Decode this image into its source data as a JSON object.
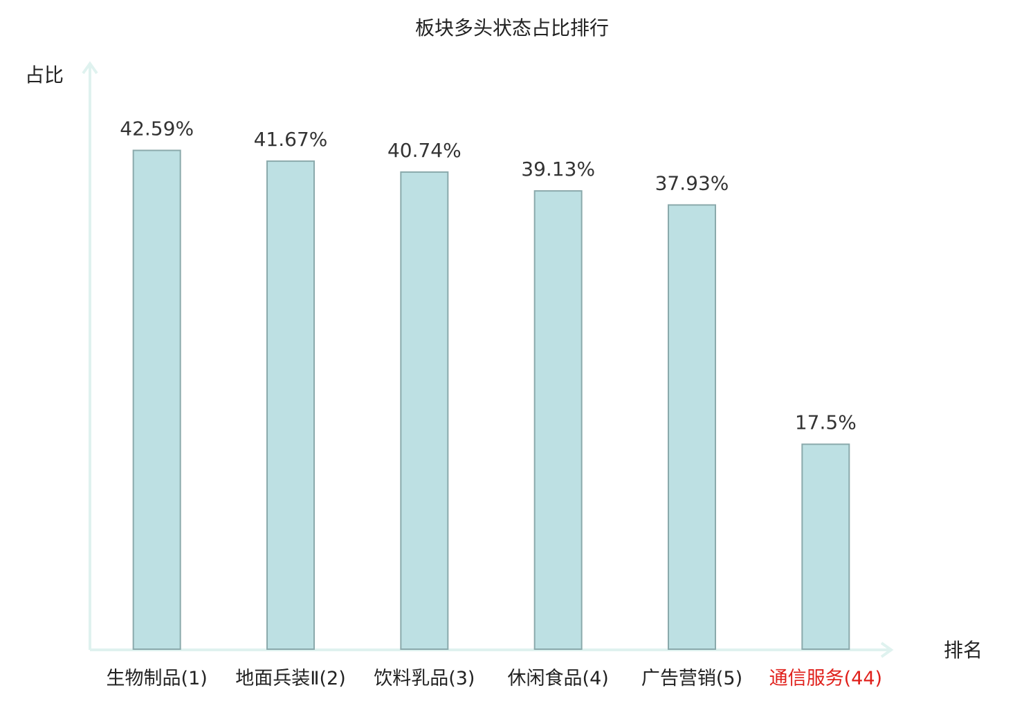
{
  "chart_data": {
    "type": "bar",
    "title": "板块多头状态占比排行",
    "y_label": "占比",
    "x_label": "排名",
    "categories": [
      "生物制品(1)",
      "地面兵装Ⅱ(2)",
      "饮料乳品(3)",
      "休闲食品(4)",
      "广告营销(5)",
      "通信服务(44)"
    ],
    "label_colors": [
      "#222222",
      "#222222",
      "#222222",
      "#222222",
      "#222222",
      "#e0201b"
    ],
    "values": [
      42.59,
      41.67,
      40.74,
      39.13,
      37.93,
      17.5
    ],
    "value_labels": [
      "42.59%",
      "41.67%",
      "40.74%",
      "39.13%",
      "37.93%",
      "17.5%"
    ],
    "color": "#bde0e3",
    "ylim": [
      0,
      50
    ]
  }
}
